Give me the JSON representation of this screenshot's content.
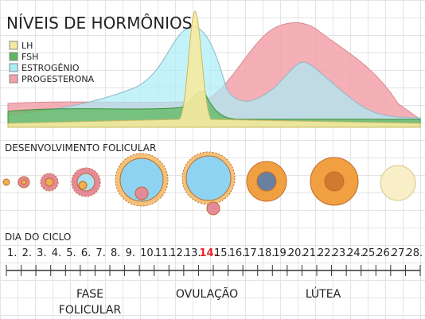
{
  "header": {
    "title": "NÍVEIS DE HORMÔNIOS"
  },
  "legend": [
    {
      "label": "LH",
      "color": "#f6eaa0"
    },
    {
      "label": "FSH",
      "color": "#5fb85f"
    },
    {
      "label": "ESTROGÊNIO",
      "color": "#a9eef6"
    },
    {
      "label": "PROGESTERONA",
      "color": "#f3a1a9"
    }
  ],
  "follicle_section": {
    "title": "DESENVOLVIMENTO FOLICULAR"
  },
  "cycle": {
    "title": "DIA DO CICLO",
    "days": [
      {
        "label": "1."
      },
      {
        "label": "2."
      },
      {
        "label": "3."
      },
      {
        "label": "4."
      },
      {
        "label": "5."
      },
      {
        "label": "6."
      },
      {
        "label": "7."
      },
      {
        "label": "8."
      },
      {
        "label": "9."
      },
      {
        "label": "10."
      },
      {
        "label": "11."
      },
      {
        "label": "12."
      },
      {
        "label": "13."
      },
      {
        "label": "14.",
        "color": "#e8262b"
      },
      {
        "label": "15."
      },
      {
        "label": "16."
      },
      {
        "label": "17."
      },
      {
        "label": "18."
      },
      {
        "label": "19."
      },
      {
        "label": "20."
      },
      {
        "label": "21."
      },
      {
        "label": "22."
      },
      {
        "label": "23."
      },
      {
        "label": "24."
      },
      {
        "label": "25."
      },
      {
        "label": "26."
      },
      {
        "label": "27."
      },
      {
        "label": "28."
      }
    ]
  },
  "phases": [
    {
      "lines": [
        "FASE",
        "FOLICULAR"
      ]
    },
    {
      "lines": [
        "OVULAÇÃO"
      ]
    },
    {
      "lines": [
        "LÚTEA"
      ]
    }
  ]
}
